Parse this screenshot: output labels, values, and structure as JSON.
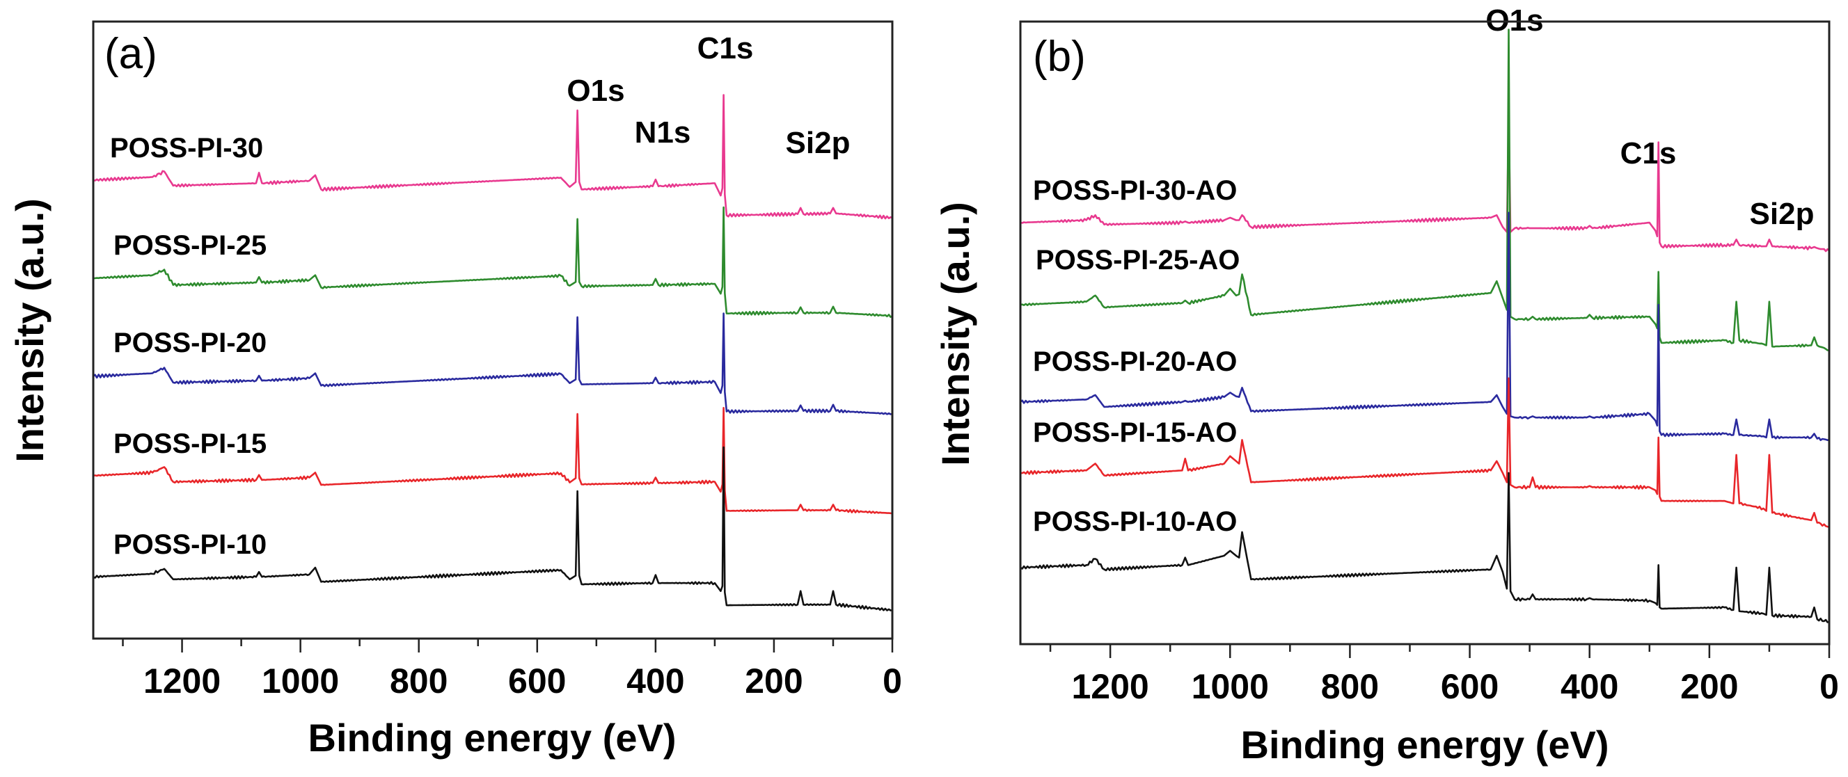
{
  "chart_data": [
    {
      "type": "line",
      "panel_label": "(a)",
      "xlabel": "Binding energy (eV)",
      "ylabel": "Intensity (a.u.)",
      "xlim": [
        1350,
        0
      ],
      "x_reversed": true,
      "ylim": [
        0,
        100
      ],
      "y_ticks_shown": false,
      "xticks": [
        1200,
        1000,
        800,
        600,
        400,
        200,
        0
      ],
      "grid": false,
      "peak_labels": [
        "O1s",
        "N1s",
        "C1s",
        "Si2p"
      ],
      "x": [
        1350,
        1250,
        1230,
        1215,
        1075,
        1070,
        1065,
        985,
        975,
        965,
        560,
        545,
        535,
        532,
        529,
        525,
        405,
        400,
        395,
        300,
        290,
        287,
        285,
        283,
        280,
        160,
        155,
        150,
        105,
        100,
        95,
        0
      ],
      "series": [
        {
          "name": "POSS-PI-30",
          "color": "#e8398f",
          "values": [
            74.3,
            74.8,
            75.7,
            73.4,
            73.8,
            75.5,
            73.8,
            74.2,
            75.1,
            72.8,
            74.7,
            73.2,
            74.0,
            85.6,
            74.0,
            72.8,
            73.3,
            74.4,
            73.3,
            73.8,
            71.8,
            73.0,
            88.1,
            72.0,
            68.6,
            68.8,
            69.8,
            68.8,
            68.9,
            69.8,
            68.9,
            68.2
          ]
        },
        {
          "name": "POSS-PI-25",
          "color": "#2e8b2e",
          "values": [
            58.4,
            58.9,
            59.8,
            57.3,
            57.7,
            58.6,
            57.7,
            58.1,
            58.9,
            56.9,
            58.8,
            57.2,
            57.8,
            68.0,
            57.8,
            57.1,
            57.3,
            58.3,
            57.3,
            57.5,
            55.9,
            57.0,
            69.9,
            56.0,
            52.7,
            52.8,
            53.7,
            52.8,
            52.8,
            53.8,
            52.8,
            52.3
          ]
        },
        {
          "name": "POSS-PI-20",
          "color": "#2a2a9e",
          "values": [
            42.5,
            43.0,
            43.9,
            41.5,
            41.8,
            42.6,
            41.8,
            42.2,
            43.0,
            41.0,
            42.9,
            41.4,
            42.0,
            52.1,
            42.0,
            41.2,
            41.4,
            42.3,
            41.4,
            41.6,
            39.8,
            41.0,
            52.7,
            40.0,
            36.8,
            36.9,
            37.8,
            36.9,
            36.9,
            37.9,
            36.9,
            36.4
          ]
        },
        {
          "name": "POSS-PI-15",
          "color": "#e8262a",
          "values": [
            26.4,
            26.9,
            27.8,
            25.4,
            25.7,
            26.5,
            25.7,
            26.1,
            26.9,
            24.9,
            26.8,
            25.3,
            26.0,
            36.4,
            26.0,
            25.0,
            25.2,
            26.1,
            25.2,
            25.4,
            23.8,
            25.0,
            37.4,
            24.0,
            20.7,
            20.8,
            21.7,
            20.8,
            20.8,
            21.7,
            20.8,
            20.3
          ]
        },
        {
          "name": "POSS-PI-10",
          "color": "#111111",
          "values": [
            10.0,
            10.5,
            11.3,
            9.6,
            10.0,
            10.8,
            10.0,
            10.4,
            11.5,
            9.2,
            11.1,
            9.6,
            10.2,
            23.9,
            10.2,
            8.8,
            9.0,
            10.3,
            9.0,
            9.0,
            7.7,
            8.5,
            31.0,
            7.5,
            5.4,
            5.5,
            7.7,
            5.5,
            5.5,
            7.7,
            5.5,
            4.6
          ]
        }
      ]
    },
    {
      "type": "line",
      "panel_label": "(b)",
      "xlabel": "Binding energy (eV)",
      "ylabel": "Intensity (a.u.)",
      "xlim": [
        1350,
        0
      ],
      "x_reversed": true,
      "ylim": [
        0,
        100
      ],
      "y_ticks_shown": false,
      "xticks": [
        1200,
        1000,
        800,
        600,
        400,
        200,
        0
      ],
      "grid": false,
      "peak_labels": [
        "O1s",
        "C1s",
        "Si2p"
      ],
      "x": [
        1350,
        1240,
        1225,
        1210,
        1080,
        1075,
        1070,
        1010,
        1000,
        990,
        985,
        980,
        965,
        565,
        555,
        545,
        538,
        535,
        532,
        525,
        500,
        495,
        490,
        405,
        400,
        395,
        300,
        290,
        287,
        285,
        283,
        280,
        175,
        160,
        155,
        150,
        110,
        105,
        100,
        95,
        30,
        25,
        20,
        0
      ],
      "series": [
        {
          "name": "POSS-PI-30-AO",
          "color": "#e8398f",
          "values": [
            67.7,
            68.1,
            68.9,
            67.4,
            67.7,
            67.9,
            67.7,
            68.1,
            68.5,
            68.1,
            68.1,
            68.9,
            67.0,
            68.5,
            68.9,
            67.0,
            66.2,
            85.4,
            66.2,
            66.8,
            66.8,
            66.8,
            66.8,
            66.8,
            67.2,
            66.8,
            67.7,
            66.4,
            65.5,
            80.6,
            64.5,
            63.9,
            64.1,
            64.1,
            65.0,
            64.1,
            63.9,
            63.9,
            65.0,
            63.9,
            63.6,
            63.8,
            63.6,
            63.2
          ]
        },
        {
          "name": "POSS-PI-25-AO",
          "color": "#2e8b2e",
          "values": [
            54.5,
            55.0,
            56.0,
            54.1,
            54.8,
            55.2,
            54.8,
            56.0,
            57.1,
            56.0,
            56.2,
            59.4,
            52.9,
            56.4,
            58.3,
            55.6,
            53.7,
            98.7,
            52.6,
            52.2,
            52.2,
            52.6,
            52.2,
            52.4,
            52.9,
            52.4,
            52.6,
            51.4,
            50.7,
            59.8,
            49.3,
            48.4,
            48.8,
            48.4,
            55.0,
            48.8,
            48.2,
            48.0,
            55.0,
            47.8,
            48.0,
            49.3,
            48.0,
            47.2
          ]
        },
        {
          "name": "POSS-PI-20-AO",
          "color": "#2a2a9e",
          "values": [
            38.9,
            39.3,
            40.0,
            38.1,
            38.9,
            39.1,
            38.9,
            39.7,
            40.4,
            39.8,
            39.7,
            41.2,
            37.4,
            38.9,
            40.0,
            38.1,
            37.0,
            69.3,
            36.6,
            36.4,
            36.4,
            36.6,
            36.4,
            36.4,
            36.6,
            36.4,
            37.0,
            35.9,
            35.1,
            54.5,
            34.2,
            33.6,
            33.8,
            33.6,
            36.1,
            33.6,
            33.4,
            33.2,
            36.1,
            33.2,
            33.2,
            33.8,
            33.0,
            32.8
          ]
        },
        {
          "name": "POSS-PI-15-AO",
          "color": "#e8262a",
          "values": [
            27.5,
            27.9,
            29.0,
            27.1,
            27.9,
            29.8,
            27.9,
            29.0,
            30.2,
            29.4,
            29.0,
            32.8,
            26.0,
            27.9,
            29.4,
            27.5,
            26.0,
            42.7,
            25.6,
            25.2,
            25.2,
            26.8,
            25.2,
            25.2,
            25.4,
            25.2,
            25.2,
            24.7,
            24.1,
            33.2,
            23.7,
            23.0,
            23.0,
            22.6,
            30.4,
            22.6,
            21.8,
            21.4,
            30.4,
            21.1,
            19.9,
            21.1,
            19.5,
            18.8
          ]
        },
        {
          "name": "POSS-PI-10-AO",
          "color": "#111111",
          "values": [
            12.3,
            12.7,
            13.7,
            12.0,
            12.7,
            13.9,
            12.7,
            14.2,
            15.0,
            14.2,
            13.9,
            18.0,
            10.4,
            12.0,
            14.2,
            11.6,
            8.9,
            27.5,
            8.5,
            7.2,
            7.2,
            8.0,
            7.2,
            7.2,
            7.4,
            7.2,
            7.0,
            6.6,
            6.3,
            12.7,
            5.9,
            5.7,
            5.9,
            5.5,
            12.3,
            5.3,
            4.9,
            4.7,
            12.3,
            4.6,
            4.4,
            5.9,
            4.0,
            3.6
          ]
        }
      ]
    }
  ]
}
